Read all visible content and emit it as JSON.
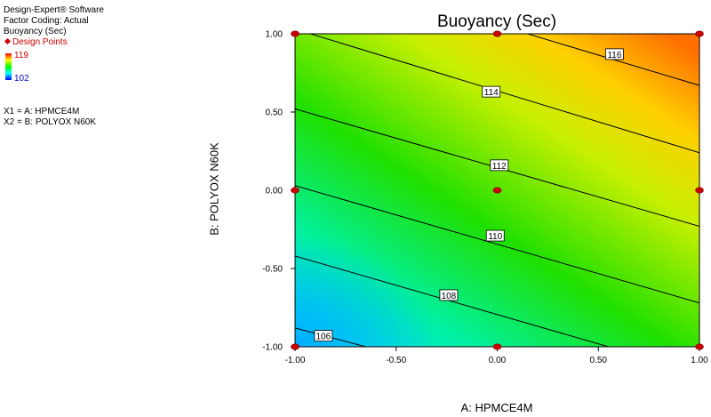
{
  "sidebar": {
    "software": "Design-Expert® Software",
    "coding": "Factor Coding: Actual",
    "response": "Buoyancy (Sec)",
    "design_points_label": "Design Points",
    "legend_high": "119",
    "legend_low": "102",
    "x1": "X1 = A: HPMCE4M",
    "x2": "X2 = B: POLYOX N60K"
  },
  "colors": {
    "design_point": "#cc0000",
    "contour_line": "#000000"
  },
  "chart_data": {
    "type": "contour",
    "title": "Buoyancy (Sec)",
    "xlabel": "A: HPMCE4M",
    "ylabel": "B: POLYOX N60K",
    "xlim": [
      -1,
      1
    ],
    "ylim": [
      -1,
      1
    ],
    "x_ticks": [
      "-1.00",
      "-0.50",
      "0.00",
      "0.50",
      "1.00"
    ],
    "y_ticks": [
      "-1.00",
      "-0.50",
      "0.00",
      "0.50",
      "1.00"
    ],
    "response_range": [
      102,
      119
    ],
    "contours": [
      {
        "level": "106",
        "label_at": [
          -0.86,
          -0.93
        ],
        "points": [
          [
            -1,
            -0.88
          ],
          [
            -0.65,
            -1
          ]
        ]
      },
      {
        "level": "108",
        "label_at": [
          -0.24,
          -0.67
        ],
        "points": [
          [
            -1,
            -0.42
          ],
          [
            0.55,
            -1
          ]
        ]
      },
      {
        "level": "110",
        "label_at": [
          -0.01,
          -0.29
        ],
        "points": [
          [
            -1,
            0.03
          ],
          [
            1,
            -0.72
          ]
        ]
      },
      {
        "level": "112",
        "label_at": [
          0.01,
          0.16
        ],
        "points": [
          [
            -1,
            0.52
          ],
          [
            1,
            -0.23
          ]
        ]
      },
      {
        "level": "114",
        "label_at": [
          -0.03,
          0.63
        ],
        "points": [
          [
            -1,
            1.03
          ],
          [
            1,
            0.24
          ]
        ]
      },
      {
        "level": "116",
        "label_at": [
          0.58,
          0.87
        ],
        "points": [
          [
            0.15,
            1
          ],
          [
            1,
            0.67
          ]
        ]
      }
    ],
    "design_points": [
      [
        -1,
        1
      ],
      [
        0,
        1
      ],
      [
        1,
        1
      ],
      [
        -1,
        0
      ],
      [
        0,
        0
      ],
      [
        1,
        0
      ],
      [
        -1,
        -1
      ],
      [
        0,
        -1
      ],
      [
        1,
        -1
      ]
    ]
  }
}
